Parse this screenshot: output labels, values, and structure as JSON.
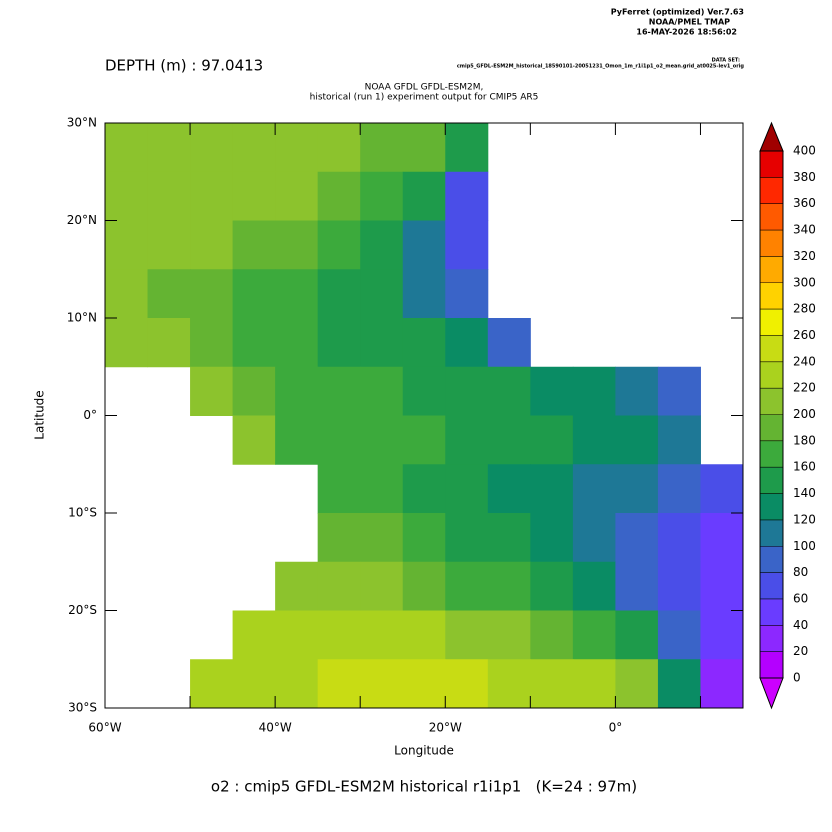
{
  "chart_data": {
    "type": "heatmap",
    "software": "PyFerret (optimized) Ver.7.63",
    "organization": "NOAA/PMEL TMAP",
    "timestamp": "16-MAY-2026 18:56:02",
    "dataset_label": "DATA SET:",
    "dataset": "cmip5_GFDL-ESM2M_historical_18590101-20051231_Omon_1m_r1i1p1_o2_mean.grid_at0025-lev1_orig",
    "depth_label": "DEPTH (m) : 97.0413",
    "title": "NOAA GFDL GFDL-ESM2M,",
    "subtitle": "historical (run 1) experiment output for CMIP5 AR5",
    "y_label": "Latitude",
    "x_label": "Longitude",
    "caption": "o2 : cmip5 GFDL-ESM2M historical r1i1p1   (K=24 : 97m)",
    "xlim": [
      -60,
      15
    ],
    "ylim": [
      -30,
      30
    ],
    "xticks": [
      {
        "value": -60,
        "label": "60°W"
      },
      {
        "value": -40,
        "label": "40°W"
      },
      {
        "value": -20,
        "label": "20°W"
      },
      {
        "value": 0,
        "label": "0°"
      }
    ],
    "xminor_ticks": [
      -50,
      -30,
      -10,
      10
    ],
    "yticks": [
      {
        "value": 30,
        "label": "30°N"
      },
      {
        "value": 20,
        "label": "20°N"
      },
      {
        "value": 10,
        "label": "10°N"
      },
      {
        "value": 0,
        "label": "0°"
      },
      {
        "value": -10,
        "label": "10°S"
      },
      {
        "value": -20,
        "label": "20°S"
      },
      {
        "value": -30,
        "label": "30°S"
      }
    ],
    "x": [
      -57.5,
      -52.5,
      -47.5,
      -42.5,
      -37.5,
      -32.5,
      -27.5,
      -22.5,
      -17.5,
      -12.5,
      -7.5,
      -2.5,
      2.5,
      7.5,
      12.5
    ],
    "y": [
      27.5,
      22.5,
      17.5,
      12.5,
      7.5,
      2.5,
      -2.5,
      -7.5,
      -12.5,
      -17.5,
      -22.5,
      -27.5
    ],
    "values": [
      [
        210,
        210,
        210,
        210,
        205,
        200,
        195,
        180,
        140,
        null,
        null,
        null,
        null,
        null,
        null
      ],
      [
        210,
        210,
        210,
        205,
        200,
        190,
        175,
        140,
        70,
        null,
        null,
        null,
        null,
        null,
        null
      ],
      [
        210,
        205,
        200,
        195,
        185,
        170,
        150,
        110,
        70,
        null,
        null,
        null,
        null,
        null,
        null
      ],
      [
        200,
        190,
        180,
        170,
        160,
        150,
        140,
        110,
        80,
        null,
        null,
        null,
        null,
        null,
        null
      ],
      [
        215,
        205,
        190,
        170,
        160,
        150,
        145,
        140,
        130,
        90,
        null,
        null,
        null,
        null,
        null
      ],
      [
        null,
        null,
        200,
        185,
        165,
        160,
        160,
        155,
        150,
        140,
        130,
        120,
        110,
        90,
        null
      ],
      [
        null,
        null,
        null,
        200,
        175,
        165,
        160,
        160,
        155,
        150,
        140,
        130,
        120,
        100,
        null
      ],
      [
        null,
        null,
        null,
        null,
        null,
        175,
        160,
        150,
        145,
        135,
        125,
        115,
        100,
        80,
        70
      ],
      [
        null,
        null,
        null,
        null,
        null,
        195,
        185,
        170,
        155,
        140,
        125,
        110,
        90,
        70,
        55
      ],
      [
        null,
        null,
        null,
        null,
        215,
        210,
        200,
        190,
        175,
        160,
        140,
        120,
        95,
        70,
        45
      ],
      [
        null,
        null,
        null,
        220,
        225,
        225,
        225,
        220,
        215,
        205,
        190,
        170,
        140,
        90,
        45
      ],
      [
        null,
        null,
        225,
        230,
        235,
        240,
        240,
        240,
        240,
        235,
        230,
        220,
        200,
        120,
        30
      ]
    ],
    "levels": [
      0,
      20,
      40,
      60,
      80,
      100,
      120,
      140,
      160,
      180,
      200,
      220,
      240,
      260,
      280,
      300,
      320,
      340,
      360,
      380,
      400
    ],
    "colors": [
      "#b400ff",
      "#8c28ff",
      "#6a3cff",
      "#4a4ee8",
      "#3a64c8",
      "#1e7896",
      "#0a8c64",
      "#1e9b4b",
      "#3caa3c",
      "#64b432",
      "#8cc32d",
      "#aad21e",
      "#c8dc14",
      "#f0f000",
      "#ffd200",
      "#ffaa00",
      "#ff8200",
      "#ff5a00",
      "#ff2800",
      "#e60000"
    ],
    "under_color": "#cc00ff",
    "over_color": "#a00000"
  }
}
